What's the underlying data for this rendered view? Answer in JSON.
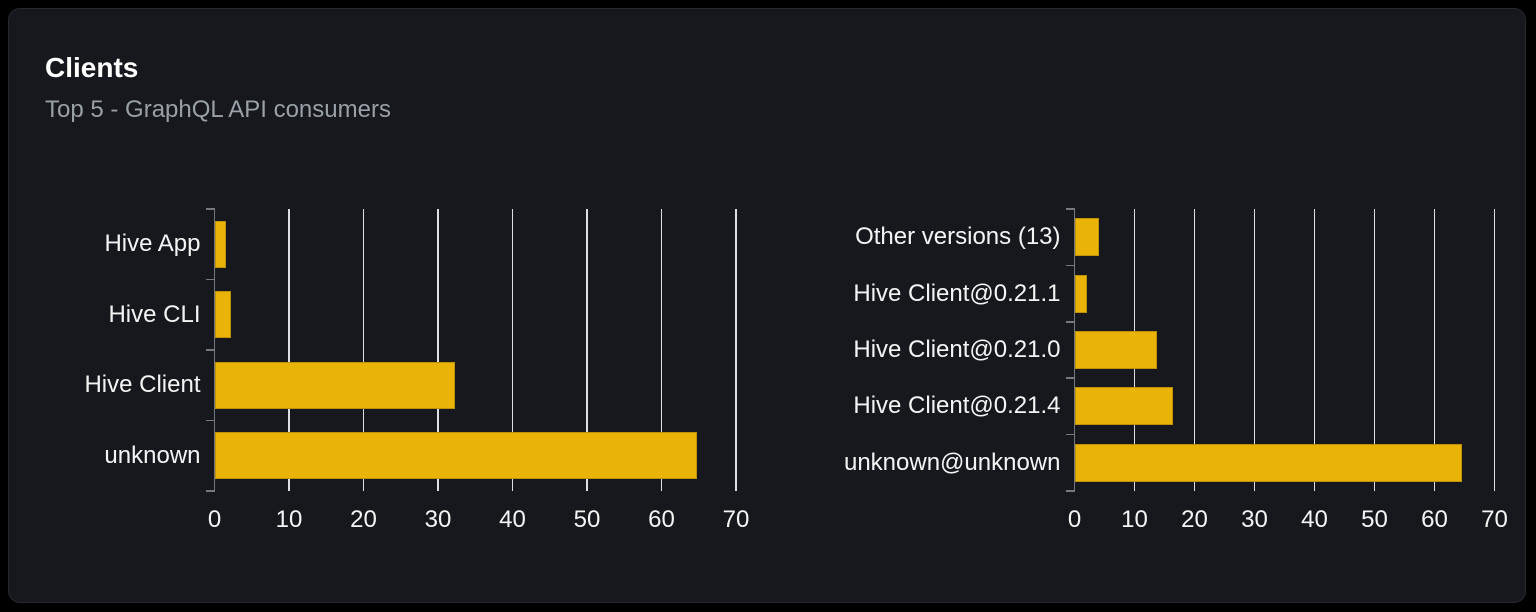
{
  "card": {
    "title": "Clients",
    "subtitle": "Top 5 - GraphQL API consumers"
  },
  "colors": {
    "page_bg": "#000000",
    "card_bg": "#16181d",
    "card_border": "#26292f",
    "bar": "#eab308",
    "gridline": "#dcdfe4",
    "axis": "#75787f",
    "title_text": "#ffffff",
    "subtitle_text": "#9aa0a8",
    "label_text": "#f4f4f5"
  },
  "chart_data": [
    {
      "type": "bar",
      "orientation": "horizontal",
      "name": "top-clients",
      "categories": [
        "Hive App",
        "Hive CLI",
        "Hive Client",
        "unknown"
      ],
      "values": [
        1.5,
        2.2,
        32.3,
        64.7
      ],
      "xlim": [
        0,
        70
      ],
      "x_ticks": [
        0,
        10,
        20,
        30,
        40,
        50,
        60,
        70
      ],
      "grid": true,
      "legend": false
    },
    {
      "type": "bar",
      "orientation": "horizontal",
      "name": "top-client-versions",
      "categories": [
        "Other versions (13)",
        "Hive Client@0.21.1",
        "Hive Client@0.21.0",
        "Hive Client@0.21.4",
        "unknown@unknown"
      ],
      "values": [
        4.0,
        2.0,
        13.8,
        16.4,
        64.6
      ],
      "xlim": [
        0,
        70
      ],
      "x_ticks": [
        0,
        10,
        20,
        30,
        40,
        50,
        60,
        70
      ],
      "grid": true,
      "legend": false
    }
  ]
}
